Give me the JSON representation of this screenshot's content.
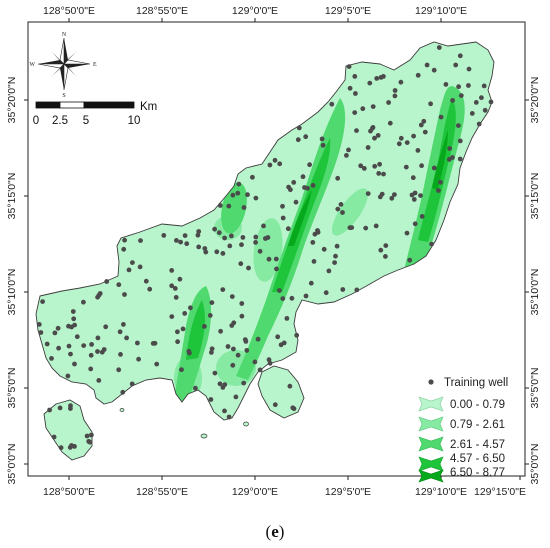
{
  "panel_label": "e",
  "map": {
    "x_ticks": [
      "128°50'0\"E",
      "128°55'0\"E",
      "129°0'0\"E",
      "129°5'0\"E",
      "129°10'0\"E",
      "129°15'0\"E"
    ],
    "y_ticks": [
      "35°20'0\"N",
      "35°15'0\"N",
      "35°10'0\"N",
      "35°5'0\"N",
      "35°0'0\"N"
    ]
  },
  "compass": {
    "n": "N",
    "s": "S",
    "e": "E",
    "w": "W"
  },
  "scale_bar": {
    "unit": "Km",
    "labels": [
      "0",
      "2.5",
      "5",
      "10"
    ]
  },
  "legend": {
    "point_label": "Training well",
    "classes": [
      {
        "label": "0.00 - 0.79",
        "color": "#b9f5cc"
      },
      {
        "label": "0.79 - 2.61",
        "color": "#86eaa3"
      },
      {
        "label": "2.61 - 4.57",
        "color": "#4fd96f"
      },
      {
        "label": "4.57 - 6.50",
        "color": "#1ec43a"
      },
      {
        "label": "6.50 - 8.77",
        "color": "#06a81c"
      }
    ]
  },
  "colors": {
    "well": "#4b4b4b",
    "outline": "#3c3c3c",
    "frame": "#222222"
  }
}
